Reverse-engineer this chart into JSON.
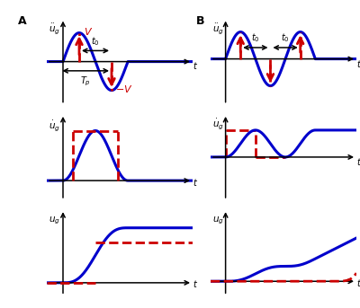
{
  "fig_width": 4.0,
  "fig_height": 3.43,
  "dpi": 100,
  "bg_color": "#ffffff",
  "blue": "#0000cc",
  "red": "#cc0000",
  "panel_A": "A",
  "panel_B": "B"
}
